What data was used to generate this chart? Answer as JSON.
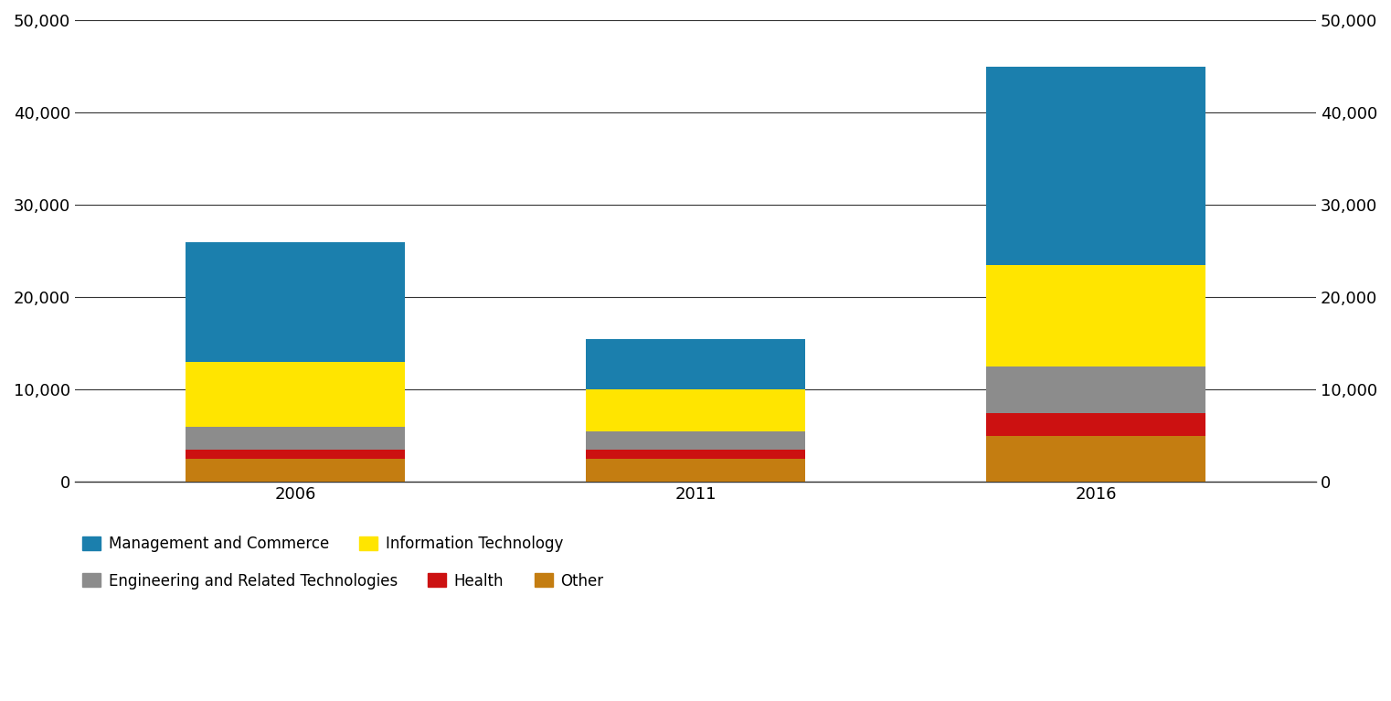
{
  "years": [
    "2006",
    "2011",
    "2016"
  ],
  "segments": {
    "Other": {
      "values": [
        2500,
        2500,
        5000
      ],
      "color": "#C47D11"
    },
    "Health": {
      "values": [
        1000,
        1000,
        2500
      ],
      "color": "#CC1111"
    },
    "Engineering and Related Technologies": {
      "values": [
        2500,
        2000,
        5000
      ],
      "color": "#8C8C8C"
    },
    "Information Technology": {
      "values": [
        7000,
        4500,
        11000
      ],
      "color": "#FFE500"
    },
    "Management and Commerce": {
      "values": [
        13000,
        5500,
        21500
      ],
      "color": "#1B7FAD"
    }
  },
  "ylim": [
    0,
    50000
  ],
  "yticks": [
    0,
    10000,
    20000,
    30000,
    40000,
    50000
  ],
  "ytick_labels": [
    "0",
    "10,000",
    "20,000",
    "30,000",
    "40,000",
    "50,000"
  ],
  "bar_width": 0.55,
  "x_positions": [
    0,
    1,
    2
  ],
  "xlim": [
    -0.55,
    2.55
  ],
  "background_color": "#FFFFFF",
  "grid_color": "#333333",
  "tick_fontsize": 13,
  "legend_fontsize": 12,
  "stack_order": [
    "Other",
    "Health",
    "Engineering and Related Technologies",
    "Information Technology",
    "Management and Commerce"
  ],
  "legend_row1": [
    "Management and Commerce",
    "Information Technology"
  ],
  "legend_row2": [
    "Engineering and Related Technologies",
    "Health",
    "Other"
  ]
}
